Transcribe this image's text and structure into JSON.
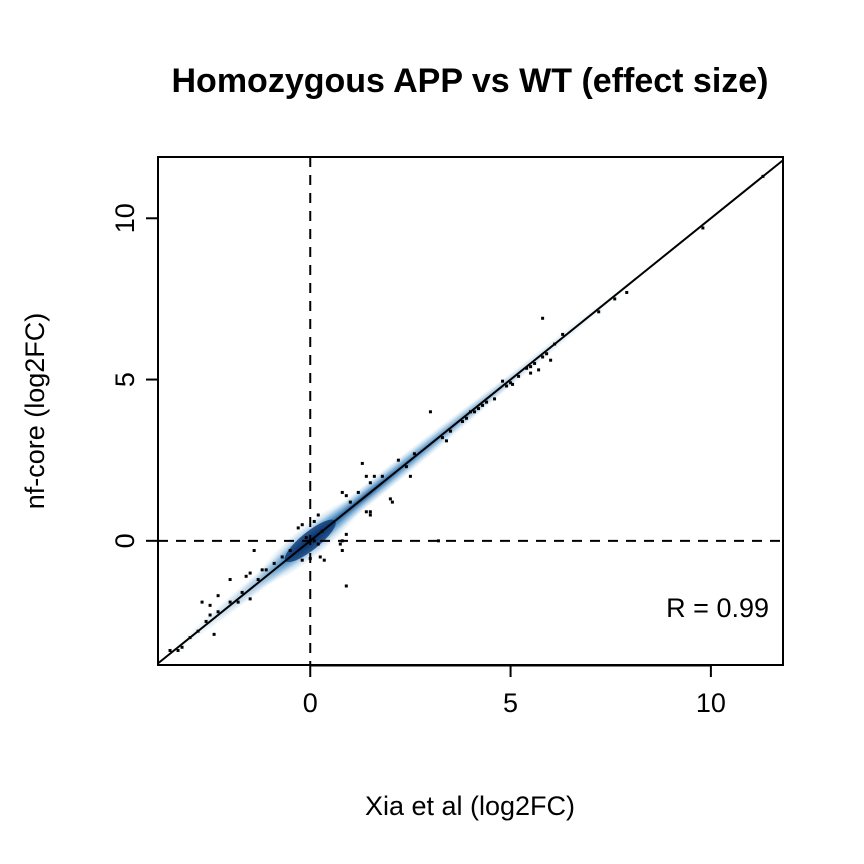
{
  "chart_data": {
    "type": "scatter",
    "title": "Homozygous APP vs WT (effect size)",
    "xlabel": "Xia et al (log2FC)",
    "ylabel": "nf-core (log2FC)",
    "xlim": [
      -3.8,
      11.8
    ],
    "ylim": [
      -3.85,
      11.9
    ],
    "x_ticks": [
      0,
      5,
      10
    ],
    "y_ticks": [
      0,
      5,
      10
    ],
    "grid": false,
    "reference_lines": {
      "identity": true,
      "x_zero_dashed": true,
      "y_zero_dashed": true
    },
    "density_color": "#08519c",
    "point_color": "#000000",
    "annotation": "R = 0.99",
    "points": [
      [
        11.3,
        11.3
      ],
      [
        9.8,
        9.7
      ],
      [
        7.9,
        7.7
      ],
      [
        7.2,
        7.1
      ],
      [
        7.6,
        7.5
      ],
      [
        5.8,
        6.9
      ],
      [
        6.3,
        6.4
      ],
      [
        6.1,
        6.1
      ],
      [
        5.9,
        5.8
      ],
      [
        5.8,
        5.7
      ],
      [
        5.6,
        5.5
      ],
      [
        5.5,
        5.4
      ],
      [
        6.0,
        5.6
      ],
      [
        5.7,
        5.3
      ],
      [
        5.4,
        5.35
      ],
      [
        5.2,
        5.1
      ],
      [
        5.0,
        4.9
      ],
      [
        4.9,
        4.8
      ],
      [
        5.05,
        4.85
      ],
      [
        4.6,
        4.4
      ],
      [
        4.3,
        4.2
      ],
      [
        4.2,
        4.1
      ],
      [
        4.1,
        4.0
      ],
      [
        4.0,
        4.0
      ],
      [
        3.9,
        3.8
      ],
      [
        3.8,
        3.7
      ],
      [
        3.5,
        3.4
      ],
      [
        3.3,
        3.2
      ],
      [
        3.4,
        3.1
      ],
      [
        3.0,
        4.0
      ],
      [
        2.6,
        2.7
      ],
      [
        2.4,
        2.3
      ],
      [
        2.5,
        2.0
      ],
      [
        2.2,
        2.5
      ],
      [
        2.0,
        1.3
      ],
      [
        2.05,
        1.2
      ],
      [
        1.6,
        2.0
      ],
      [
        1.5,
        1.8
      ],
      [
        1.4,
        2.0
      ],
      [
        1.3,
        2.4
      ],
      [
        1.2,
        1.5
      ],
      [
        1.0,
        1.2
      ],
      [
        0.8,
        1.5
      ],
      [
        0.9,
        1.4
      ],
      [
        1.5,
        0.8
      ],
      [
        1.4,
        0.9
      ],
      [
        1.5,
        0.9
      ],
      [
        0.9,
        0.2
      ],
      [
        0.8,
        0.0
      ],
      [
        0.75,
        -0.1
      ],
      [
        0.8,
        -0.3
      ],
      [
        0.2,
        0.8
      ],
      [
        0.1,
        0.6
      ],
      [
        -0.3,
        0.4
      ],
      [
        -0.2,
        0.5
      ],
      [
        0.3,
        0.3
      ],
      [
        0.25,
        -0.5
      ],
      [
        0.35,
        -0.6
      ],
      [
        0.0,
        -0.55
      ],
      [
        -0.2,
        -0.6
      ],
      [
        0.2,
        -0.1
      ],
      [
        -0.1,
        0.1
      ],
      [
        0.1,
        0.0
      ],
      [
        -0.5,
        -0.3
      ],
      [
        -0.7,
        -0.5
      ],
      [
        -0.9,
        -0.7
      ],
      [
        -1.1,
        -0.9
      ],
      [
        -1.4,
        -0.3
      ],
      [
        -1.5,
        -1.0
      ],
      [
        -1.3,
        -1.2
      ],
      [
        -1.6,
        -1.1
      ],
      [
        -1.7,
        -1.6
      ],
      [
        -1.8,
        -1.9
      ],
      [
        -1.5,
        -1.8
      ],
      [
        -2.0,
        -1.9
      ],
      [
        -2.3,
        -2.2
      ],
      [
        -2.5,
        -2.3
      ],
      [
        -2.6,
        -2.5
      ],
      [
        -2.3,
        -1.7
      ],
      [
        -2.7,
        -1.9
      ],
      [
        -2.5,
        -2.0
      ],
      [
        -2.8,
        -2.8
      ],
      [
        -3.0,
        -3.0
      ],
      [
        -3.3,
        -3.4
      ],
      [
        -3.5,
        -3.4
      ],
      [
        -3.2,
        -3.3
      ],
      [
        3.2,
        0.0
      ],
      [
        -2.4,
        -2.9
      ],
      [
        -2.0,
        -1.2
      ],
      [
        -1.2,
        -0.9
      ],
      [
        0.9,
        -1.4
      ],
      [
        1.8,
        2.0
      ],
      [
        4.4,
        4.3
      ],
      [
        4.8,
        4.95
      ],
      [
        5.5,
        5.2
      ]
    ]
  }
}
